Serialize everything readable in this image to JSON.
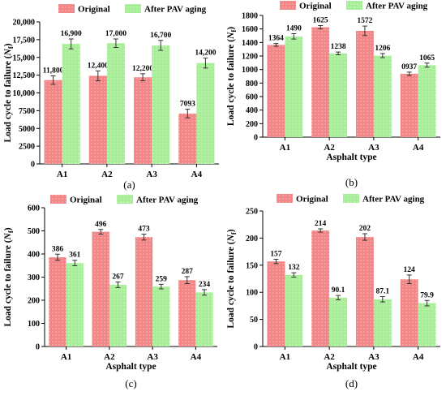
{
  "colors": {
    "original": "#f28585",
    "after": "#a8ee98",
    "dots": "#ffffff"
  },
  "chart_data": [
    {
      "type": "bar",
      "panel_label": "(a)",
      "legend": [
        "Original",
        "After PAV aging"
      ],
      "legend_position": "top",
      "categories": [
        "A1",
        "A2",
        "A3",
        "A4"
      ],
      "series": [
        {
          "name": "Original",
          "values": [
            11800,
            12400,
            12200,
            7093
          ],
          "errors": [
            600,
            700,
            500,
            600
          ]
        },
        {
          "name": "After PAV aging",
          "values": [
            16900,
            17000,
            16700,
            14200
          ],
          "errors": [
            700,
            600,
            700,
            700
          ]
        }
      ],
      "data_labels": [
        [
          "11,800",
          "12,400",
          "12,200",
          "7093"
        ],
        [
          "16,900",
          "17,000",
          "16,700",
          "14,200"
        ]
      ],
      "ylim": [
        0,
        20000
      ],
      "yticks": [
        0,
        2500,
        5000,
        7500,
        10000,
        12500,
        15000,
        17500,
        20000
      ],
      "ytick_labels": [
        "0",
        "2500",
        "5000",
        "7500",
        "10,000",
        "12,500",
        "15,000",
        "17,500",
        "20,000"
      ],
      "xlabel": "",
      "ylabel": "Load cycle to failure (Nf)"
    },
    {
      "type": "bar",
      "panel_label": "(b)",
      "legend": [
        "Original",
        "After PAV aging"
      ],
      "legend_position": "top",
      "categories": [
        "A1",
        "A2",
        "A3",
        "A4"
      ],
      "series": [
        {
          "name": "Original",
          "values": [
            1364,
            1625,
            1572,
            937
          ],
          "errors": [
            20,
            25,
            70,
            25
          ]
        },
        {
          "name": "After PAV aging",
          "values": [
            1490,
            1238,
            1206,
            1065
          ],
          "errors": [
            40,
            20,
            30,
            30
          ]
        }
      ],
      "data_labels": [
        [
          "1364",
          "1625",
          "1572",
          "0937"
        ],
        [
          "1490",
          "1238",
          "1206",
          "1065"
        ]
      ],
      "ylim": [
        0,
        1800
      ],
      "yticks": [
        0,
        200,
        400,
        600,
        800,
        1000,
        1200,
        1400,
        1600,
        1800
      ],
      "ytick_labels": [
        "0",
        "200",
        "400",
        "600",
        "800",
        "1000",
        "1200",
        "1400",
        "1600",
        "1800"
      ],
      "xlabel": "Asphalt type",
      "ylabel": "Load cycle to failure (Nf)"
    },
    {
      "type": "bar",
      "panel_label": "(c)",
      "legend": [
        "Original",
        "After PAV aging"
      ],
      "legend_position": "top",
      "categories": [
        "A1",
        "A2",
        "A3",
        "A4"
      ],
      "series": [
        {
          "name": "Original",
          "values": [
            386,
            496,
            473,
            287
          ],
          "errors": [
            13,
            10,
            13,
            15
          ]
        },
        {
          "name": "After PAV aging",
          "values": [
            361,
            267,
            259,
            234
          ],
          "errors": [
            12,
            12,
            10,
            12
          ]
        }
      ],
      "data_labels": [
        [
          "386",
          "496",
          "473",
          "287"
        ],
        [
          "361",
          "267",
          "259",
          "234"
        ]
      ],
      "ylim": [
        0,
        600
      ],
      "yticks": [
        0,
        100,
        200,
        300,
        400,
        500,
        600
      ],
      "ytick_labels": [
        "0",
        "100",
        "200",
        "300",
        "400",
        "500",
        "600"
      ],
      "xlabel": "Asphalt type",
      "ylabel": "Load cycle to failure (Nf)"
    },
    {
      "type": "bar",
      "panel_label": "(d)",
      "legend": [
        "Original",
        "After PAV aging"
      ],
      "legend_position": "top",
      "categories": [
        "A1",
        "A2",
        "A3",
        "A4"
      ],
      "series": [
        {
          "name": "Original",
          "values": [
            157,
            214,
            202,
            124
          ],
          "errors": [
            4,
            3,
            6,
            8
          ]
        },
        {
          "name": "After PAV aging",
          "values": [
            132,
            90.1,
            87.1,
            79.9
          ],
          "errors": [
            4,
            4,
            5,
            5
          ]
        }
      ],
      "data_labels": [
        [
          "157",
          "214",
          "202",
          "124"
        ],
        [
          "132",
          "90.1",
          "87.1",
          "79.9"
        ]
      ],
      "ylim": [
        0,
        250
      ],
      "yticks": [
        0,
        50,
        100,
        150,
        200,
        250
      ],
      "ytick_labels": [
        "0",
        "50",
        "100",
        "150",
        "200",
        "250"
      ],
      "xlabel": "Asphalt type",
      "ylabel": "Load cycle to failure (Nf)"
    }
  ]
}
